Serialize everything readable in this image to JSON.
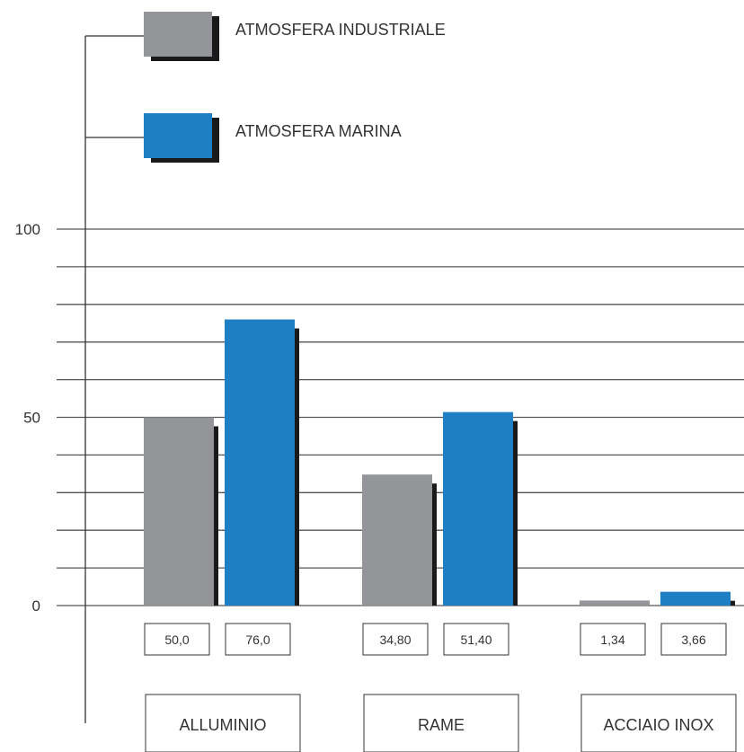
{
  "chart_data": {
    "type": "bar",
    "title": "",
    "xlabel": "",
    "ylabel": "",
    "ylim": [
      0,
      100
    ],
    "y_ticks": [
      "0",
      "50",
      "100"
    ],
    "grid": true,
    "legend_position": "top",
    "categories": [
      "ALLUMINIO",
      "RAME",
      "ACCIAIO INOX"
    ],
    "series": [
      {
        "name": "ATMOSFERA INDUSTRIALE",
        "color": "#939598",
        "values": [
          50.0,
          34.8,
          1.34
        ],
        "labels": [
          "50,0",
          "34,80",
          "1,34"
        ]
      },
      {
        "name": "ATMOSFERA MARINA",
        "color": "#1f7fc4",
        "values": [
          76.0,
          51.4,
          3.66
        ],
        "labels": [
          "76,0",
          "51,40",
          "3,66"
        ]
      }
    ]
  }
}
